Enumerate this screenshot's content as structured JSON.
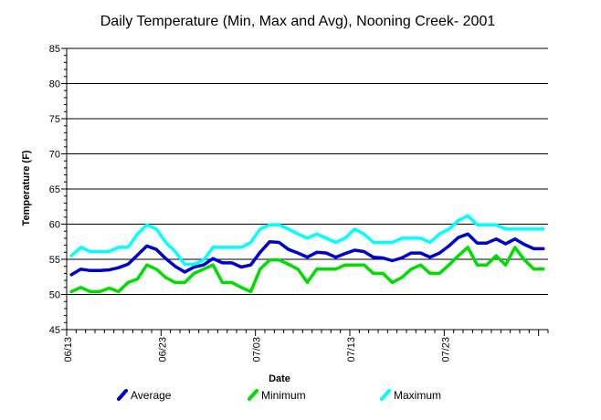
{
  "chart_data": {
    "type": "line",
    "title": "Daily Temperature (Min, Max and Avg), Nooning Creek- 2001",
    "xlabel": "Date",
    "ylabel": "Temperature (F)",
    "ylim": [
      45,
      85
    ],
    "y_ticks": [
      45,
      50,
      55,
      60,
      65,
      70,
      75,
      80,
      85
    ],
    "x_tick_labels": [
      "06/13",
      "06/23",
      "07/03",
      "07/13",
      "07/23"
    ],
    "grid": true,
    "legend_position": "bottom",
    "x": [
      "06/13",
      "06/14",
      "06/15",
      "06/16",
      "06/17",
      "06/18",
      "06/19",
      "06/20",
      "06/21",
      "06/22",
      "06/23",
      "06/24",
      "06/25",
      "06/26",
      "06/27",
      "06/28",
      "06/29",
      "06/30",
      "07/01",
      "07/02",
      "07/03",
      "07/04",
      "07/05",
      "07/06",
      "07/07",
      "07/08",
      "07/09",
      "07/10",
      "07/11",
      "07/12",
      "07/13",
      "07/14",
      "07/15",
      "07/16",
      "07/17",
      "07/18",
      "07/19",
      "07/20",
      "07/21",
      "07/22",
      "07/23",
      "07/24",
      "07/25",
      "07/26",
      "07/27",
      "07/28",
      "07/29",
      "07/30",
      "07/31",
      "08/01",
      "08/02"
    ],
    "series": [
      {
        "name": "Average",
        "color": "#0000cc",
        "values": [
          52.8,
          53.6,
          53.4,
          53.4,
          53.5,
          53.8,
          54.3,
          55.6,
          56.9,
          56.4,
          55.1,
          54.0,
          53.2,
          53.9,
          54.2,
          55.1,
          54.5,
          54.5,
          53.9,
          54.2,
          56.0,
          57.5,
          57.4,
          56.4,
          55.9,
          55.3,
          56.0,
          55.9,
          55.3,
          55.8,
          56.3,
          56.1,
          55.3,
          55.2,
          54.8,
          55.2,
          55.9,
          55.9,
          55.3,
          55.9,
          56.9,
          58.1,
          58.6,
          57.3,
          57.3,
          57.9,
          57.2,
          57.9,
          57.1,
          56.5,
          56.5
        ]
      },
      {
        "name": "Minimum",
        "color": "#00dd00",
        "values": [
          50.4,
          51.0,
          50.4,
          50.4,
          50.9,
          50.4,
          51.7,
          52.2,
          54.2,
          53.6,
          52.4,
          51.7,
          51.7,
          53.0,
          53.6,
          54.2,
          51.7,
          51.7,
          51.0,
          50.4,
          53.6,
          54.9,
          54.9,
          54.3,
          53.6,
          51.7,
          53.6,
          53.6,
          53.6,
          54.2,
          54.2,
          54.2,
          53.0,
          53.0,
          51.7,
          52.4,
          53.6,
          54.2,
          53.0,
          53.0,
          54.2,
          55.5,
          56.7,
          54.2,
          54.2,
          55.5,
          54.2,
          56.7,
          54.9,
          53.6,
          53.6
        ]
      },
      {
        "name": "Maximum",
        "color": "#00ffff",
        "values": [
          55.5,
          56.7,
          56.1,
          56.1,
          56.1,
          56.7,
          56.7,
          58.6,
          59.9,
          59.3,
          57.4,
          56.1,
          54.3,
          54.3,
          54.9,
          56.7,
          56.7,
          56.7,
          56.7,
          57.4,
          59.3,
          59.9,
          59.9,
          59.3,
          58.6,
          58.0,
          58.6,
          58.0,
          57.4,
          58.0,
          59.3,
          58.6,
          57.4,
          57.4,
          57.4,
          58.0,
          58.0,
          58.0,
          57.4,
          58.6,
          59.3,
          60.5,
          61.2,
          59.9,
          59.9,
          59.9,
          59.3,
          59.3,
          59.3,
          59.3,
          59.3
        ]
      }
    ]
  }
}
